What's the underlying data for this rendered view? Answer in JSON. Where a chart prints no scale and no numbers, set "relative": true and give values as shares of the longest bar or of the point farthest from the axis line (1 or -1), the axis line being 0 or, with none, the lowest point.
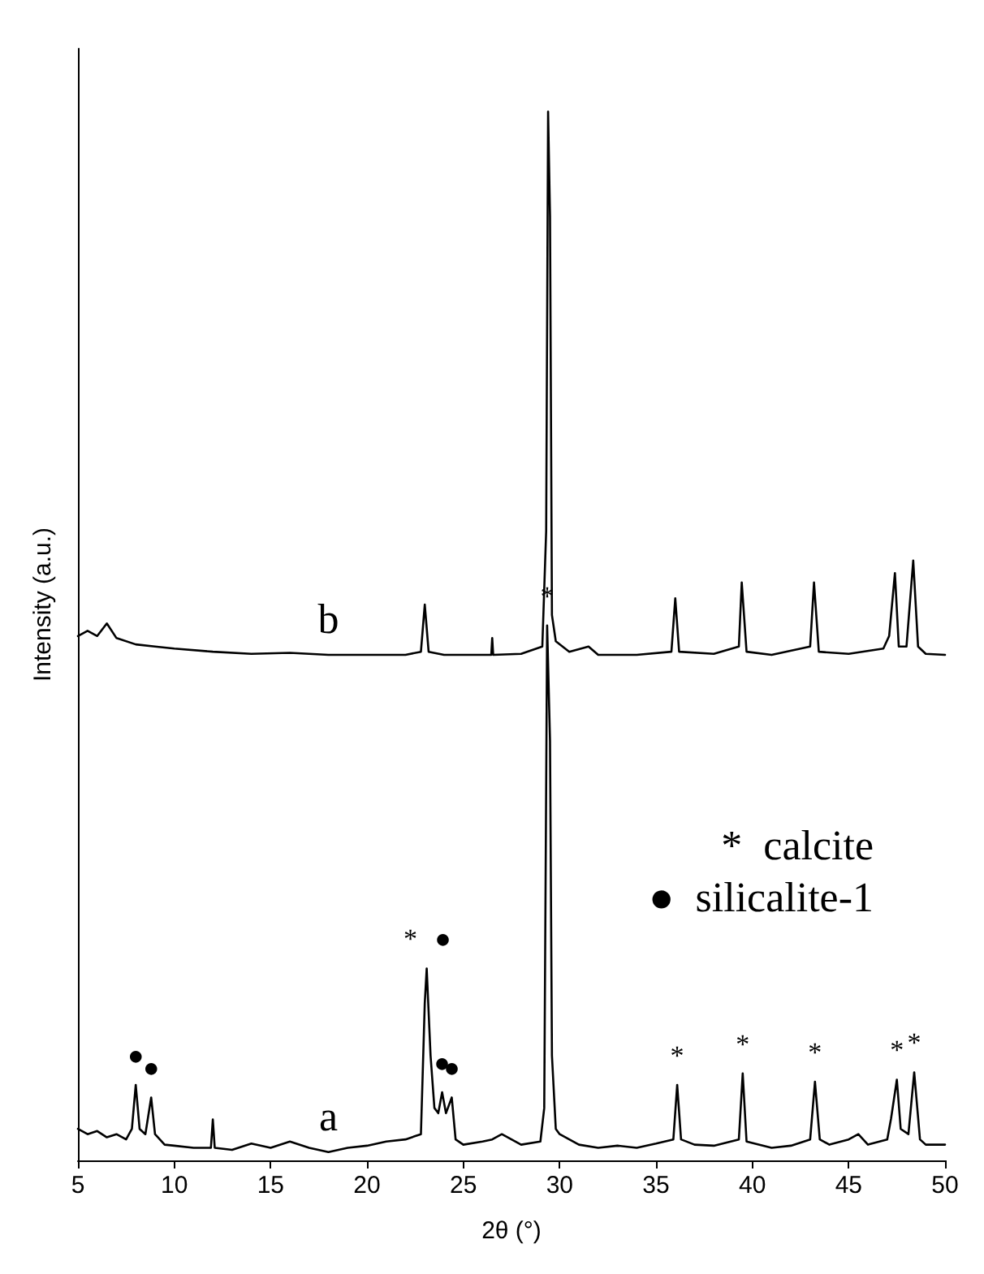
{
  "chart_data": {
    "type": "line",
    "relative": true,
    "xlabel": "2θ (°)",
    "ylabel": "Intensity (a.u.)",
    "xlim": [
      5,
      50
    ],
    "xticks": [
      5,
      10,
      15,
      20,
      25,
      30,
      35,
      40,
      45,
      50
    ],
    "grid": false,
    "series": [
      {
        "name": "a",
        "color": "#000000",
        "x": [
          5,
          5.5,
          6,
          6.5,
          7,
          7.5,
          7.8,
          8.0,
          8.2,
          8.5,
          8.8,
          9.0,
          9.5,
          10,
          11,
          11.9,
          12.0,
          12.1,
          13,
          14,
          15,
          16,
          17,
          18,
          19,
          20,
          21,
          22,
          22.8,
          23.0,
          23.1,
          23.3,
          23.5,
          23.7,
          23.9,
          24.1,
          24.4,
          24.6,
          25,
          26,
          26.5,
          27,
          28,
          29,
          29.2,
          29.35,
          29.5,
          29.6,
          29.8,
          30,
          31,
          32,
          33,
          34,
          35,
          35.9,
          36.1,
          36.3,
          37,
          38,
          39.3,
          39.5,
          39.7,
          41,
          42,
          43.0,
          43.25,
          43.5,
          44,
          45,
          45.5,
          46,
          47,
          47.2,
          47.5,
          47.7,
          48.1,
          48.4,
          48.7,
          49,
          50
        ],
        "values": [
          0.03,
          0.025,
          0.028,
          0.022,
          0.025,
          0.02,
          0.03,
          0.072,
          0.03,
          0.025,
          0.06,
          0.025,
          0.015,
          0.014,
          0.012,
          0.012,
          0.039,
          0.012,
          0.01,
          0.016,
          0.012,
          0.018,
          0.012,
          0.008,
          0.012,
          0.014,
          0.018,
          0.02,
          0.025,
          0.15,
          0.183,
          0.1,
          0.05,
          0.045,
          0.065,
          0.045,
          0.06,
          0.02,
          0.015,
          0.018,
          0.02,
          0.025,
          0.015,
          0.018,
          0.05,
          0.51,
          0.4,
          0.1,
          0.03,
          0.025,
          0.015,
          0.012,
          0.014,
          0.012,
          0.016,
          0.02,
          0.072,
          0.02,
          0.015,
          0.014,
          0.02,
          0.083,
          0.018,
          0.012,
          0.014,
          0.02,
          0.075,
          0.02,
          0.015,
          0.02,
          0.025,
          0.015,
          0.02,
          0.04,
          0.077,
          0.03,
          0.025,
          0.084,
          0.02,
          0.015,
          0.015
        ]
      },
      {
        "name": "b",
        "color": "#000000",
        "x": [
          5,
          5.5,
          6,
          6.5,
          7,
          8,
          9,
          10,
          12,
          14,
          16,
          18,
          20,
          22,
          22.8,
          23.0,
          23.2,
          24,
          26,
          26.45,
          26.5,
          26.55,
          28,
          29.1,
          29.3,
          29.4,
          29.5,
          29.6,
          29.8,
          30.5,
          31.5,
          32,
          34,
          35.8,
          36.0,
          36.2,
          38,
          39.3,
          39.45,
          39.7,
          41,
          43.0,
          43.2,
          43.45,
          45,
          46.8,
          47.1,
          47.4,
          47.6,
          48.0,
          48.35,
          48.6,
          49,
          50
        ],
        "values": [
          0.5,
          0.505,
          0.5,
          0.512,
          0.498,
          0.492,
          0.49,
          0.488,
          0.485,
          0.483,
          0.484,
          0.482,
          0.482,
          0.482,
          0.485,
          0.53,
          0.485,
          0.482,
          0.482,
          0.482,
          0.498,
          0.482,
          0.483,
          0.49,
          0.6,
          1.0,
          0.9,
          0.52,
          0.495,
          0.485,
          0.49,
          0.482,
          0.482,
          0.485,
          0.536,
          0.485,
          0.483,
          0.49,
          0.551,
          0.485,
          0.482,
          0.49,
          0.551,
          0.485,
          0.483,
          0.488,
          0.5,
          0.56,
          0.49,
          0.49,
          0.572,
          0.49,
          0.483,
          0.482
        ]
      }
    ],
    "annotations": [
      {
        "text": "●",
        "x": 8.0,
        "y": 0.072
      },
      {
        "text": "●",
        "x": 8.8,
        "y": 0.06
      },
      {
        "text": "*",
        "x": 23.1,
        "y": 0.183
      },
      {
        "text": "●",
        "x": 23.1,
        "y": 0.183
      },
      {
        "text": "●",
        "x": 23.9,
        "y": 0.065
      },
      {
        "text": "●",
        "x": 24.4,
        "y": 0.06
      },
      {
        "text": "*",
        "x": 29.35,
        "y": 0.51
      },
      {
        "text": "*",
        "x": 36.1,
        "y": 0.072
      },
      {
        "text": "*",
        "x": 39.5,
        "y": 0.083
      },
      {
        "text": "*",
        "x": 43.25,
        "y": 0.075
      },
      {
        "text": "*",
        "x": 47.5,
        "y": 0.077
      },
      {
        "text": "*",
        "x": 48.4,
        "y": 0.084
      },
      "*  calcite",
      "●  silicalite-1"
    ]
  }
}
